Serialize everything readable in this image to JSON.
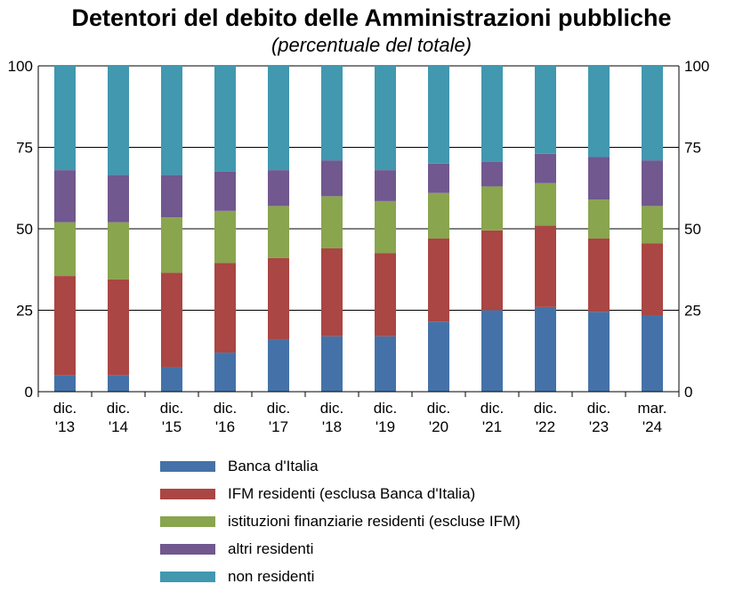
{
  "chart_data": {
    "type": "bar",
    "stacked": true,
    "title": "Detentori del debito delle Amministrazioni pubbliche",
    "subtitle": "(percentuale del totale)",
    "categories": [
      [
        "dic.",
        "'13"
      ],
      [
        "dic.",
        "'14"
      ],
      [
        "dic.",
        "'15"
      ],
      [
        "dic.",
        "'16"
      ],
      [
        "dic.",
        "'17"
      ],
      [
        "dic.",
        "'18"
      ],
      [
        "dic.",
        "'19"
      ],
      [
        "dic.",
        "'20"
      ],
      [
        "dic.",
        "'21"
      ],
      [
        "dic.",
        "'22"
      ],
      [
        "dic.",
        "'23"
      ],
      [
        "mar.",
        "'24"
      ]
    ],
    "ylim": [
      0,
      100
    ],
    "yticks": [
      "0",
      "25",
      "50",
      "75",
      "100"
    ],
    "grid": true,
    "legend_position": "bottom",
    "series": [
      {
        "name": "Banca d'Italia",
        "color": "#4472a8",
        "values": [
          5,
          5,
          7.5,
          12,
          16,
          17,
          17,
          21.5,
          25,
          26,
          24.5,
          23.5
        ]
      },
      {
        "name": "IFM residenti (esclusa Banca d'Italia)",
        "color": "#aa4643",
        "values": [
          30.5,
          29.5,
          29,
          27.5,
          25,
          27,
          25.5,
          25.5,
          24.5,
          25,
          22.5,
          22
        ]
      },
      {
        "name": "istituzioni finanziarie residenti (escluse IFM)",
        "color": "#89a54e",
        "values": [
          16.5,
          17.5,
          17,
          16,
          16,
          16,
          16,
          14,
          13.5,
          13,
          12,
          11.5
        ]
      },
      {
        "name": "altri residenti",
        "color": "#71588f",
        "values": [
          16,
          14.5,
          13,
          12,
          11,
          11,
          9.5,
          9,
          7.5,
          9,
          13,
          14
        ]
      },
      {
        "name": "non residenti",
        "color": "#4198af",
        "values": [
          32,
          33.5,
          33.5,
          32.5,
          32,
          29,
          32,
          30,
          29.5,
          27,
          28,
          29
        ]
      }
    ]
  }
}
